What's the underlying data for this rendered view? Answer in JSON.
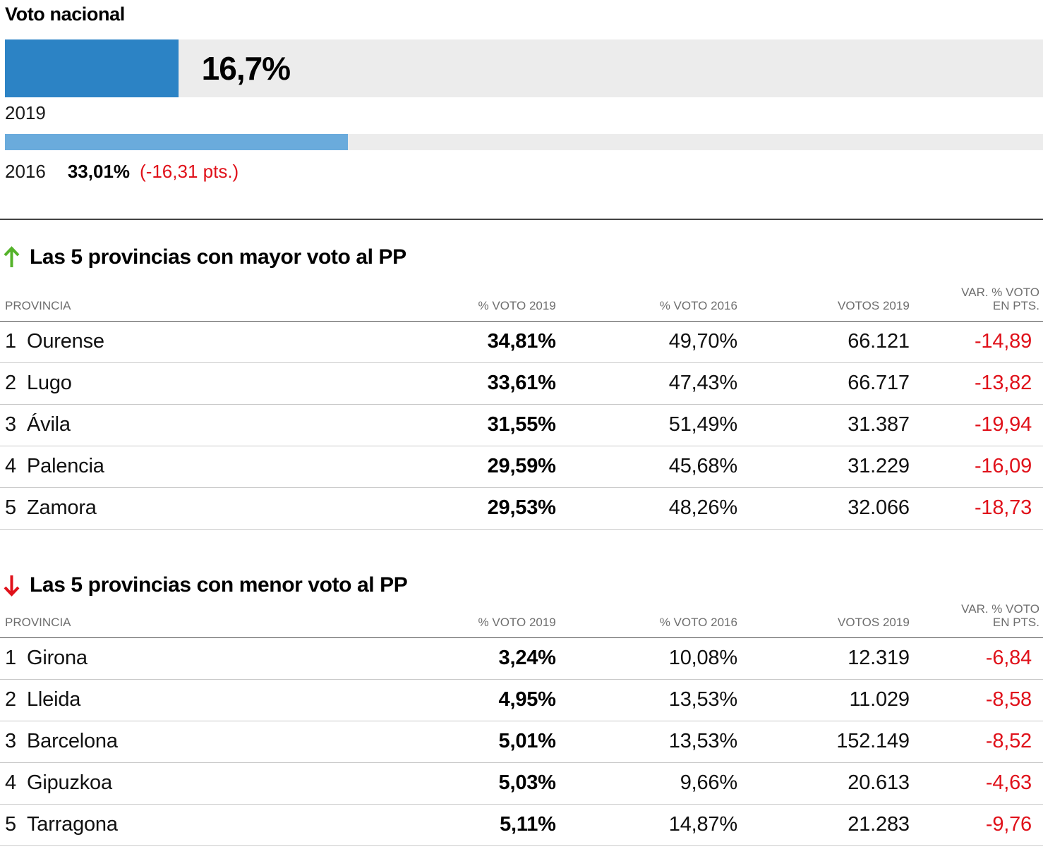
{
  "colors": {
    "bar2019": "#2c83c5",
    "bar2016": "#6aabdc",
    "track": "#ececec",
    "negative": "#e0111a",
    "arrow-green": "#55b32b",
    "arrow-red": "#e0111a"
  },
  "national": {
    "title": "Voto nacional",
    "bars": [
      {
        "year": "2019",
        "label": "16,7%",
        "pct": 16.7
      },
      {
        "year": "2016",
        "label": "33,01%",
        "pct": 33.01,
        "diff": "(-16,31 pts.)"
      }
    ]
  },
  "tables": [
    {
      "direction": "up",
      "title": "Las 5 provincias con mayor voto al PP",
      "columns": {
        "province": "PROVINCIA",
        "voto2019": "% VOTO 2019",
        "voto2016": "% VOTO 2016",
        "votos2019": "VOTOS 2019",
        "variation": "VAR. % VOTO\nEN PTS."
      },
      "rows": [
        {
          "rank": "1",
          "province": "Ourense",
          "voto2019": "34,81%",
          "voto2016": "49,70%",
          "votos2019": "66.121",
          "variation": "-14,89"
        },
        {
          "rank": "2",
          "province": "Lugo",
          "voto2019": "33,61%",
          "voto2016": "47,43%",
          "votos2019": "66.717",
          "variation": "-13,82"
        },
        {
          "rank": "3",
          "province": "Ávila",
          "voto2019": "31,55%",
          "voto2016": "51,49%",
          "votos2019": "31.387",
          "variation": "-19,94"
        },
        {
          "rank": "4",
          "province": "Palencia",
          "voto2019": "29,59%",
          "voto2016": "45,68%",
          "votos2019": "31.229",
          "variation": "-16,09"
        },
        {
          "rank": "5",
          "province": "Zamora",
          "voto2019": "29,53%",
          "voto2016": "48,26%",
          "votos2019": "32.066",
          "variation": "-18,73"
        }
      ]
    },
    {
      "direction": "down",
      "title": "Las 5 provincias con menor voto al PP",
      "columns": {
        "province": "PROVINCIA",
        "voto2019": "% VOTO 2019",
        "voto2016": "% VOTO 2016",
        "votos2019": "VOTOS 2019",
        "variation": "VAR. % VOTO\nEN PTS."
      },
      "rows": [
        {
          "rank": "1",
          "province": "Girona",
          "voto2019": "3,24%",
          "voto2016": "10,08%",
          "votos2019": "12.319",
          "variation": "-6,84"
        },
        {
          "rank": "2",
          "province": "Lleida",
          "voto2019": "4,95%",
          "voto2016": "13,53%",
          "votos2019": "11.029",
          "variation": "-8,58"
        },
        {
          "rank": "3",
          "province": "Barcelona",
          "voto2019": "5,01%",
          "voto2016": "13,53%",
          "votos2019": "152.149",
          "variation": "-8,52"
        },
        {
          "rank": "4",
          "province": "Gipuzkoa",
          "voto2019": "5,03%",
          "voto2016": "9,66%",
          "votos2019": "20.613",
          "variation": "-4,63"
        },
        {
          "rank": "5",
          "province": "Tarragona",
          "voto2019": "5,11%",
          "voto2016": "14,87%",
          "votos2019": "21.283",
          "variation": "-9,76"
        }
      ]
    }
  ],
  "chart_data": [
    {
      "type": "bar",
      "title": "Voto nacional",
      "orientation": "horizontal",
      "categories": [
        "2019",
        "2016"
      ],
      "values": [
        16.7,
        33.01
      ],
      "value_labels": [
        "16,7%",
        "33,01%"
      ],
      "annotations": [
        "",
        "(-16,31 pts.)"
      ],
      "xlim": [
        0,
        100
      ],
      "grid": false,
      "legend": "none"
    },
    {
      "type": "table",
      "title": "Las 5 provincias con mayor voto al PP",
      "columns": [
        "PROVINCIA",
        "% VOTO 2019",
        "% VOTO 2016",
        "VOTOS 2019",
        "VAR. % VOTO EN PTS."
      ],
      "rows": [
        [
          "1 Ourense",
          "34,81%",
          "49,70%",
          "66.121",
          "-14,89"
        ],
        [
          "2 Lugo",
          "33,61%",
          "47,43%",
          "66.717",
          "-13,82"
        ],
        [
          "3 Ávila",
          "31,55%",
          "51,49%",
          "31.387",
          "-19,94"
        ],
        [
          "4 Palencia",
          "29,59%",
          "45,68%",
          "31.229",
          "-16,09"
        ],
        [
          "5 Zamora",
          "29,53%",
          "48,26%",
          "32.066",
          "-18,73"
        ]
      ]
    },
    {
      "type": "table",
      "title": "Las 5 provincias con menor voto al PP",
      "columns": [
        "PROVINCIA",
        "% VOTO 2019",
        "% VOTO 2016",
        "VOTOS 2019",
        "VAR. % VOTO EN PTS."
      ],
      "rows": [
        [
          "1 Girona",
          "3,24%",
          "10,08%",
          "12.319",
          "-6,84"
        ],
        [
          "2 Lleida",
          "4,95%",
          "13,53%",
          "11.029",
          "-8,58"
        ],
        [
          "3 Barcelona",
          "5,01%",
          "13,53%",
          "152.149",
          "-8,52"
        ],
        [
          "4 Gipuzkoa",
          "5,03%",
          "9,66%",
          "20.613",
          "-4,63"
        ],
        [
          "5 Tarragona",
          "5,11%",
          "14,87%",
          "21.283",
          "-9,76"
        ]
      ]
    }
  ]
}
